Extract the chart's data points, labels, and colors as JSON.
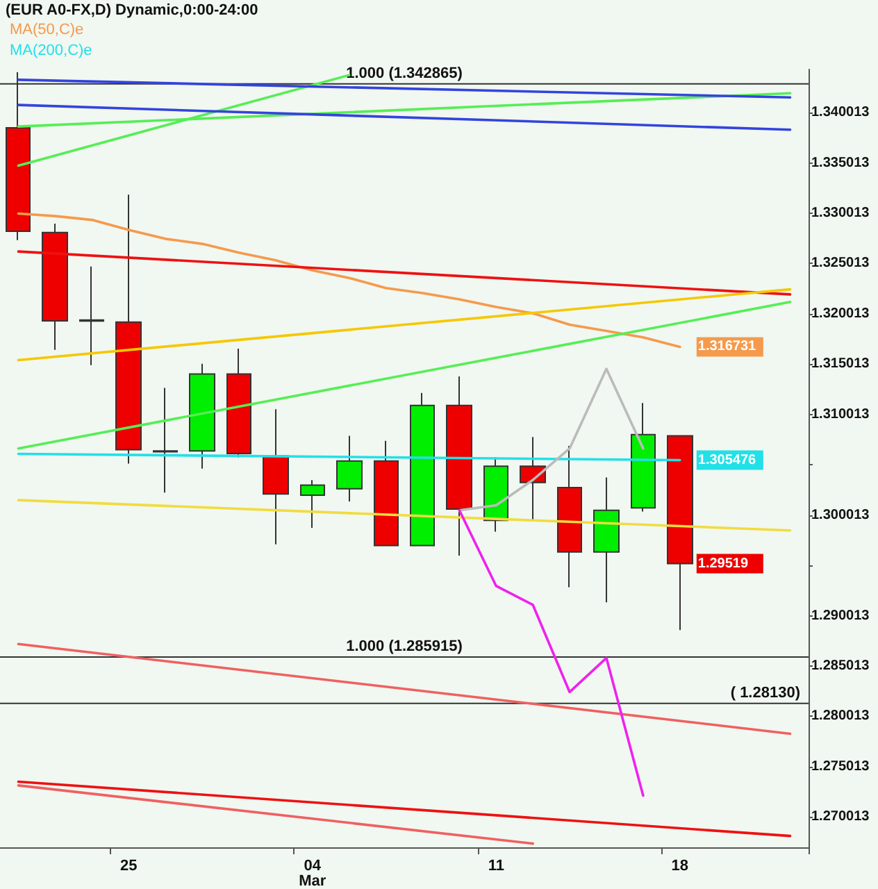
{
  "chart_data": {
    "type": "candlestick",
    "title": "(EUR A0-FX,D) Dynamic,0:00-24:00",
    "categories": [
      null,
      null,
      null,
      "25",
      null,
      null,
      null,
      null,
      "04\nMar",
      null,
      null,
      null,
      null,
      "11",
      null,
      null,
      null,
      null,
      "18",
      null,
      null,
      null
    ],
    "ylim": [
      1.267,
      1.3443
    ],
    "yticks": [
      1.270013,
      1.275013,
      1.280013,
      1.285013,
      1.290013,
      {
        "value": 1.295013,
        "label": null
      },
      1.300013,
      {
        "value": 1.305013,
        "label": null
      },
      1.310013,
      1.315013,
      1.320013,
      1.325013,
      1.330013,
      1.335013,
      1.340013
    ],
    "grid": false,
    "legend": "top left",
    "marker": "none",
    "ref_lines": [
      {
        "axis": "y",
        "value": 1.342865,
        "label": "1.000 (1.342865)",
        "color": "#333333"
      },
      {
        "axis": "y",
        "value": 1.285915,
        "label": "1.000 (1.285915)",
        "color": "#333333"
      },
      {
        "axis": "y",
        "value": 1.2813,
        "label": "( 1.28130)",
        "color": "#333333"
      }
    ],
    "series": [
      {
        "type": "candlestick",
        "ohlc": [
          [
            1.33851,
            1.34403,
            1.32734,
            1.32822
          ],
          [
            1.3281,
            1.32897,
            1.31643,
            1.31931
          ],
          [
            1.3193,
            1.32471,
            1.31492,
            1.3194
          ],
          [
            1.31919,
            1.33186,
            1.30514,
            1.30652
          ],
          [
            1.3064,
            1.31266,
            1.30225,
            1.3063
          ],
          [
            1.30639,
            1.31505,
            1.30463,
            1.31404
          ],
          [
            1.31404,
            1.31655,
            1.30576,
            1.30614
          ],
          [
            1.30589,
            1.31053,
            1.29711,
            1.30212
          ],
          [
            1.302,
            1.3035,
            1.29874,
            1.303
          ],
          [
            1.30263,
            1.30789,
            1.30137,
            1.30539
          ],
          [
            1.30539,
            1.30739,
            1.29698,
            1.29698
          ],
          [
            1.29698,
            1.31216,
            1.29698,
            1.31091
          ],
          [
            1.31091,
            1.31379,
            1.29598,
            1.30062
          ],
          [
            1.29949,
            1.30576,
            1.29836,
            1.30488
          ],
          [
            1.30488,
            1.30777,
            1.29949,
            1.30325
          ],
          [
            1.30275,
            1.30689,
            1.29284,
            1.29635
          ],
          [
            1.29635,
            1.30375,
            1.29134,
            1.30049
          ],
          [
            1.30074,
            1.31116,
            1.30037,
            1.30802
          ],
          [
            1.30789,
            1.30789,
            1.28858,
            1.29519
          ],
          null,
          null,
          null
        ],
        "colors": [
          "#ee0000",
          "#ee0000",
          "#00ee00",
          "#ee0000",
          "#ee0000",
          "#00ee00",
          "#ee0000",
          "#ee0000",
          "#00ee00",
          "#00ee00",
          "#ee0000",
          "#00ee00",
          "#ee0000",
          "#00ee00",
          "#ee0000",
          "#ee0000",
          "#00ee00",
          "#00ee00",
          "#ee0000",
          null,
          null,
          null
        ],
        "value_labels": [
          null,
          null,
          null,
          null,
          null,
          null,
          null,
          null,
          null,
          null,
          null,
          null,
          null,
          null,
          null,
          null,
          null,
          null,
          "1.29519",
          null,
          null,
          null
        ]
      },
      {
        "type": "line",
        "name": "MA(50,C)e",
        "color": "#f59a4c",
        "values": [
          1.32998,
          1.32973,
          1.32935,
          1.32835,
          1.32747,
          1.32697,
          1.32609,
          1.32534,
          1.32433,
          1.32358,
          1.32258,
          1.32207,
          1.32145,
          1.32069,
          1.32007,
          1.31894,
          1.31831,
          1.31768,
          1.316731,
          null,
          null,
          null
        ],
        "value_labels": [
          null,
          null,
          null,
          null,
          null,
          null,
          null,
          null,
          null,
          null,
          null,
          null,
          null,
          null,
          null,
          null,
          null,
          null,
          "1.316731",
          null,
          null,
          null
        ]
      },
      {
        "type": "line",
        "name": "MA(200,C)e",
        "color": "#22e0e8",
        "values": [
          1.3061,
          null,
          null,
          null,
          null,
          null,
          null,
          null,
          null,
          null,
          null,
          null,
          null,
          null,
          null,
          null,
          null,
          null,
          1.305476,
          null,
          null,
          null
        ],
        "value_labels": [
          null,
          null,
          null,
          null,
          null,
          null,
          null,
          null,
          null,
          null,
          null,
          null,
          null,
          null,
          null,
          null,
          null,
          null,
          "1.305476",
          null,
          null,
          null
        ]
      },
      {
        "type": "line",
        "color": "#ee1111",
        "values": [
          1.32621,
          null,
          null,
          null,
          null,
          null,
          null,
          null,
          null,
          null,
          null,
          null,
          null,
          null,
          null,
          null,
          null,
          null,
          null,
          null,
          null,
          1.32195
        ]
      },
      {
        "type": "line",
        "color": "#f5c800",
        "values": [
          1.31542,
          null,
          null,
          null,
          null,
          null,
          null,
          null,
          null,
          null,
          null,
          null,
          null,
          null,
          null,
          null,
          null,
          null,
          null,
          null,
          null,
          1.32245
        ]
      },
      {
        "type": "line",
        "color": "#55ee55",
        "values": [
          1.30664,
          null,
          null,
          null,
          null,
          null,
          null,
          null,
          null,
          null,
          null,
          null,
          null,
          null,
          null,
          null,
          null,
          null,
          null,
          null,
          null,
          1.32119
        ]
      },
      {
        "type": "line",
        "color": "#55ee55",
        "values": [
          1.33474,
          null,
          null,
          null,
          null,
          null,
          null,
          null,
          null,
          1.34374,
          null,
          null,
          null,
          null,
          null,
          null,
          null,
          null,
          null,
          null,
          null,
          null
        ]
      },
      {
        "type": "line",
        "color": "#55ee55",
        "values": [
          1.33863,
          null,
          null,
          null,
          null,
          null,
          null,
          null,
          null,
          null,
          null,
          null,
          null,
          null,
          null,
          null,
          null,
          null,
          null,
          null,
          null,
          1.34194
        ]
      },
      {
        "type": "line",
        "color": "#3344dd",
        "values": [
          1.34327,
          null,
          null,
          null,
          null,
          null,
          null,
          null,
          null,
          null,
          null,
          null,
          null,
          null,
          null,
          null,
          null,
          null,
          null,
          null,
          null,
          1.34152
        ]
      },
      {
        "type": "line",
        "color": "#3344dd",
        "values": [
          1.34077,
          null,
          null,
          null,
          null,
          null,
          null,
          null,
          null,
          null,
          null,
          null,
          null,
          null,
          null,
          null,
          null,
          null,
          null,
          null,
          null,
          1.33831
        ]
      },
      {
        "type": "line",
        "color": "#f0dc40",
        "values": [
          1.3015,
          null,
          null,
          null,
          null,
          null,
          null,
          null,
          null,
          null,
          null,
          null,
          null,
          null,
          null,
          null,
          null,
          null,
          null,
          null,
          null,
          1.29849
        ]
      },
      {
        "type": "line",
        "color": "#f06060",
        "values": [
          1.2872,
          null,
          null,
          null,
          null,
          null,
          null,
          null,
          null,
          null,
          null,
          null,
          null,
          null,
          null,
          null,
          null,
          null,
          null,
          null,
          null,
          1.27829
        ]
      },
      {
        "type": "line",
        "color": "#ee1111",
        "values": [
          1.27352,
          null,
          null,
          null,
          null,
          null,
          null,
          null,
          null,
          null,
          null,
          null,
          null,
          null,
          null,
          null,
          null,
          null,
          null,
          null,
          null,
          1.26813
        ]
      },
      {
        "type": "line",
        "color": "#f06060",
        "values": [
          1.27315,
          null,
          null,
          null,
          null,
          null,
          null,
          null,
          null,
          null,
          null,
          null,
          null,
          null,
          1.26737,
          null,
          null,
          null,
          null,
          null,
          null,
          null
        ]
      },
      {
        "type": "line",
        "color": "#bbbbbb",
        "values": [
          null,
          null,
          null,
          null,
          null,
          null,
          null,
          null,
          null,
          null,
          null,
          null,
          1.30049,
          1.30099,
          1.30351,
          1.30664,
          1.31455,
          1.30664,
          null,
          null,
          null,
          null
        ]
      },
      {
        "type": "line",
        "color": "#ee22ee",
        "values": [
          null,
          null,
          null,
          null,
          null,
          null,
          null,
          null,
          null,
          null,
          null,
          null,
          1.30049,
          1.29297,
          1.29109,
          1.28243,
          1.28582,
          1.27214,
          null,
          null,
          null,
          null
        ]
      }
    ]
  }
}
